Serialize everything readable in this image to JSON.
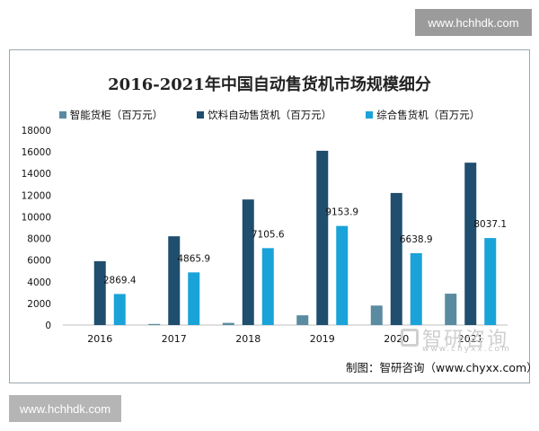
{
  "watermarks": {
    "top": "www.hchhdk.com",
    "bottom": "www.hchhdk.com"
  },
  "logo": {
    "name": "智研咨询",
    "url": "www.chyxx.com"
  },
  "source": "制图：智研咨询（www.chyxx.com）",
  "colors": {
    "series1": "#5a8ba0",
    "series2": "#1f4e6e",
    "series3": "#1aa3d8"
  },
  "chart_data": {
    "type": "bar",
    "title": "2016-2021年中国自动售货机市场规模细分",
    "categories": [
      "2016",
      "2017",
      "2018",
      "2019",
      "2020",
      "2021"
    ],
    "series": [
      {
        "name": "智能货柜（百万元）",
        "values": [
          0,
          100,
          200,
          900,
          1800,
          2900
        ],
        "labels": [
          "",
          "",
          "",
          "",
          "",
          ""
        ]
      },
      {
        "name": "饮料自动售货机（百万元）",
        "values": [
          5900,
          8200,
          11600,
          16100,
          12200,
          15000
        ],
        "labels": [
          "",
          "",
          "",
          "",
          "",
          ""
        ]
      },
      {
        "name": "综合售货机（百万元）",
        "values": [
          2869.4,
          4865.9,
          7105.6,
          9153.9,
          6638.9,
          8037.1
        ],
        "labels": [
          "2869.4",
          "4865.9",
          "7105.6",
          "9153.9",
          "6638.9",
          "8037.1"
        ]
      }
    ],
    "yticks": [
      "0",
      "2000",
      "4000",
      "6000",
      "8000",
      "10000",
      "12000",
      "14000",
      "16000",
      "18000"
    ],
    "ylim": [
      0,
      18000
    ],
    "legend": "top"
  }
}
